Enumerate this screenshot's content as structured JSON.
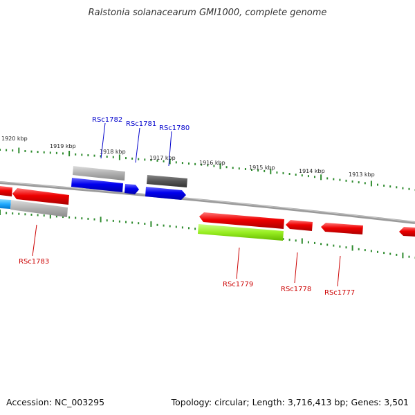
{
  "title": "Ralstonia solanacearum GMI1000, complete genome",
  "footer": {
    "accession": "Accession: NC_003295",
    "info": "Topology: circular; Length: 3,716,413 bp; Genes: 3,501"
  },
  "scale_labels": [
    "1920 kbp",
    "1919 kbp",
    "1918 kbp",
    "1917 kbp",
    "1916 kbp",
    "1915 kbp",
    "1914 kbp",
    "1913 kbp"
  ],
  "gene_labels": {
    "top": [
      "RSc1782",
      "RSc1781",
      "RSc1780"
    ],
    "bottom": [
      "RSc1783",
      "RSc1779",
      "RSc1778",
      "RSc1777"
    ]
  },
  "colors": {
    "top_label": "#0000cc",
    "bottom_label": "#cc0000",
    "tick": "#2e8b2e",
    "backbone": "#888888"
  }
}
